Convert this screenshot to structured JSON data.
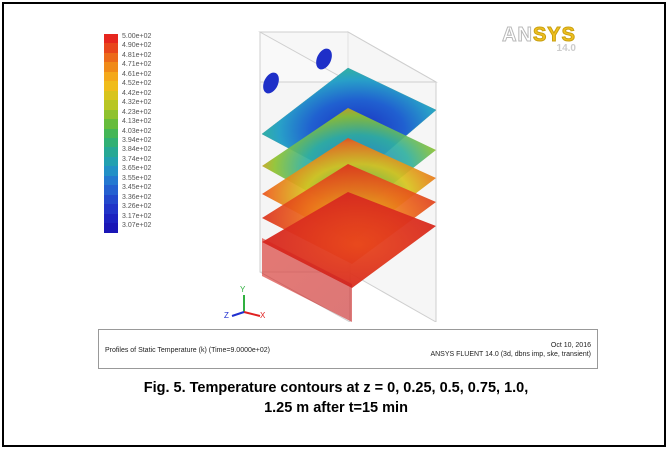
{
  "legend": {
    "labels": [
      "5.00e+02",
      "4.90e+02",
      "4.81e+02",
      "4.71e+02",
      "4.61e+02",
      "4.52e+02",
      "4.42e+02",
      "4.32e+02",
      "4.23e+02",
      "4.13e+02",
      "4.03e+02",
      "3.94e+02",
      "3.84e+02",
      "3.74e+02",
      "3.65e+02",
      "3.55e+02",
      "3.45e+02",
      "3.36e+02",
      "3.26e+02",
      "3.17e+02",
      "3.07e+02"
    ],
    "colors": [
      "#e6261e",
      "#e8461c",
      "#ec6a1a",
      "#f08a18",
      "#f4a81a",
      "#f0bc1a",
      "#d8c41c",
      "#b8c624",
      "#8ec22e",
      "#66bc3c",
      "#44b656",
      "#30b074",
      "#26a894",
      "#22a0b0",
      "#2290c6",
      "#2478d0",
      "#2460d0",
      "#2248cc",
      "#2034c8",
      "#1c22c0",
      "#1a16b6"
    ]
  },
  "logo": {
    "brand_prefix": "AN",
    "brand_suffix": "SYS",
    "version": "14.0"
  },
  "axes_triad": {
    "y": "Y",
    "z": "Z",
    "x": "X"
  },
  "info": {
    "left": "Profiles of Static Temperature (k)  (Time=9.0000e+02)",
    "date": "Oct 10, 2016",
    "solver": "ANSYS FLUENT 14.0 (3d, dbns imp, ske, transient)"
  },
  "caption": {
    "line1": "Fig. 5. Temperature contours at z = 0, 0.25, 0.5, 0.75, 1.0,",
    "line2": "1.25 m after t=15 min"
  },
  "colors": {
    "slice_top": "#2a9ad0",
    "slice_center": "#1a3cc0",
    "slice_red": "#d82a22"
  }
}
